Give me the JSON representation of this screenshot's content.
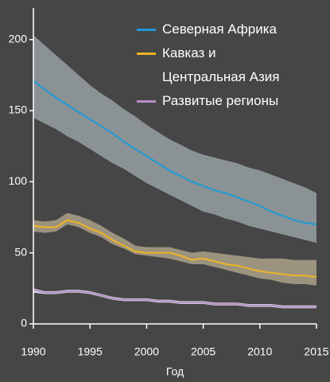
{
  "chart_data": {
    "type": "line",
    "x_label": "Год",
    "x": [
      1990,
      1991,
      1992,
      1993,
      1994,
      1995,
      1996,
      1997,
      1998,
      1999,
      2000,
      2001,
      2002,
      2003,
      2004,
      2005,
      2006,
      2007,
      2008,
      2009,
      2010,
      2011,
      2012,
      2013,
      2014,
      2015
    ],
    "xlim": [
      1990,
      2015
    ],
    "xticks": [
      1990,
      1995,
      2000,
      2005,
      2010,
      2015
    ],
    "ylim": [
      0,
      220
    ],
    "yticks": [
      0,
      50,
      100,
      150,
      200
    ],
    "grid": false,
    "legend": "top-right",
    "series": [
      {
        "name": "Северная Африка",
        "color": "#1c9ad6",
        "band_color": "#8a9295",
        "values": [
          171,
          165,
          159,
          154,
          149,
          144,
          139,
          134,
          128,
          123,
          118,
          113,
          108,
          104,
          100,
          97,
          94,
          92,
          89,
          86,
          83,
          79,
          76,
          73,
          71,
          70
        ],
        "upper": [
          203,
          196,
          189,
          182,
          175,
          168,
          162,
          157,
          151,
          146,
          140,
          135,
          130,
          126,
          122,
          119,
          117,
          115,
          113,
          110,
          108,
          105,
          102,
          99,
          96,
          92
        ],
        "lower": [
          145,
          141,
          137,
          132,
          128,
          123,
          118,
          113,
          109,
          104,
          99,
          95,
          91,
          87,
          83,
          79,
          77,
          74,
          72,
          69,
          67,
          65,
          63,
          61,
          59,
          57
        ]
      },
      {
        "name": "Кавказ и Центральная Азия",
        "color": "#f0b323",
        "band_color": "#9c937f",
        "values": [
          69,
          68,
          68,
          73,
          71,
          67,
          64,
          59,
          55,
          51,
          50,
          50,
          50,
          48,
          45,
          46,
          44,
          42,
          41,
          39,
          37,
          36,
          35,
          34,
          34,
          33
        ],
        "upper": [
          73,
          72,
          73,
          78,
          76,
          73,
          69,
          64,
          60,
          55,
          54,
          54,
          54,
          52,
          50,
          51,
          50,
          49,
          48,
          47,
          46,
          46,
          46,
          45,
          45,
          45
        ],
        "lower": [
          65,
          64,
          65,
          70,
          68,
          64,
          61,
          56,
          53,
          49,
          48,
          47,
          46,
          44,
          42,
          42,
          40,
          38,
          36,
          34,
          32,
          31,
          29,
          28,
          28,
          27
        ]
      },
      {
        "name": "Развитые регионы",
        "color": "#b48fc8",
        "band_color": "#d8d2dc",
        "values": [
          24,
          22,
          22,
          23,
          23,
          22,
          20,
          18,
          17,
          17,
          17,
          16,
          16,
          15,
          15,
          15,
          14,
          14,
          14,
          13,
          13,
          13,
          12,
          12,
          12,
          12
        ],
        "upper": [
          25,
          23,
          23,
          24,
          24,
          23,
          21,
          19,
          18,
          18,
          18,
          17,
          17,
          16,
          16,
          16,
          15,
          15,
          15,
          14,
          14,
          14,
          13,
          13,
          13,
          13
        ],
        "lower": [
          22,
          21,
          21,
          22,
          22,
          21,
          19,
          17,
          16,
          16,
          16,
          15,
          15,
          14,
          14,
          14,
          13,
          13,
          13,
          12,
          12,
          12,
          11,
          11,
          11,
          11
        ]
      }
    ]
  }
}
